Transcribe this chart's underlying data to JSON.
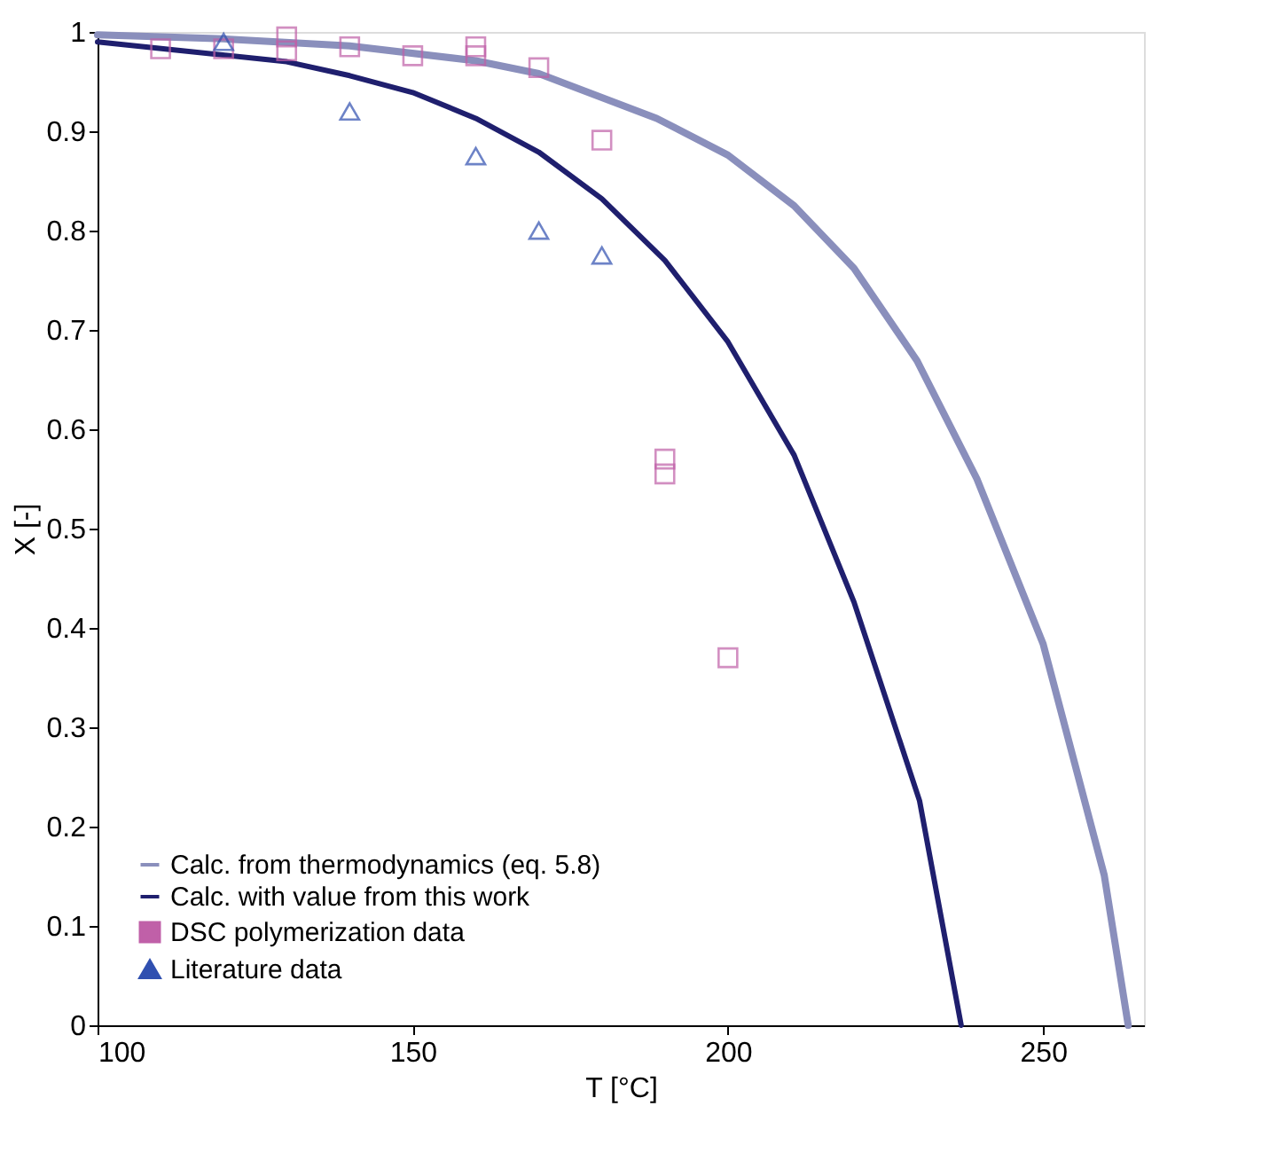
{
  "chart_data": {
    "type": "line",
    "xlabel": "T [°C]",
    "ylabel": "X [-]",
    "xlim": [
      100,
      266
    ],
    "ylim": [
      0,
      1
    ],
    "xticks": [
      100,
      150,
      200,
      250
    ],
    "yticks": [
      0,
      0.1,
      0.2,
      0.3,
      0.4,
      0.5,
      0.6,
      0.7,
      0.8,
      0.9,
      1
    ],
    "grid": false,
    "legend": "bottom left",
    "series": [
      {
        "name": "Calc. from thermodynamics (eq. 5.8)",
        "type": "line",
        "marker": "none",
        "line_style": "solid",
        "color": "#8a8fbc",
        "x": [
          100,
          120,
          140,
          160,
          170,
          177.5,
          188.7,
          200,
          210.5,
          220,
          230,
          239.5,
          250,
          259.7,
          263.5
        ],
        "values": [
          0.997,
          0.993,
          0.986,
          0.971,
          0.958,
          0.94,
          0.913,
          0.876,
          0.825,
          0.762,
          0.669,
          0.55,
          0.384,
          0.151,
          0
        ]
      },
      {
        "name": "Calc. with value from this work",
        "type": "line",
        "marker": "none",
        "line_style": "solid",
        "color": "#1f1f6e",
        "x": [
          100,
          130,
          140,
          150,
          160,
          170,
          180,
          190,
          200,
          210.5,
          220,
          230.4,
          237
        ],
        "values": [
          0.99,
          0.97,
          0.956,
          0.939,
          0.913,
          0.879,
          0.832,
          0.77,
          0.688,
          0.574,
          0.426,
          0.226,
          0
        ]
      },
      {
        "name": "DSC polymerization data",
        "type": "scatter",
        "marker": "square",
        "color": "#c060a8",
        "x": [
          110,
          120,
          130,
          130,
          140,
          150,
          160,
          160,
          170,
          180,
          190,
          190,
          200
        ],
        "values": [
          0.983,
          0.983,
          0.995,
          0.981,
          0.985,
          0.976,
          0.985,
          0.976,
          0.964,
          0.891,
          0.57,
          0.555,
          0.37
        ]
      },
      {
        "name": "Literature data",
        "type": "scatter",
        "marker": "triangle",
        "color": "#3050b0",
        "x": [
          120,
          140,
          160,
          170,
          180
        ],
        "values": [
          0.99,
          0.92,
          0.875,
          0.8,
          0.775
        ]
      }
    ]
  }
}
